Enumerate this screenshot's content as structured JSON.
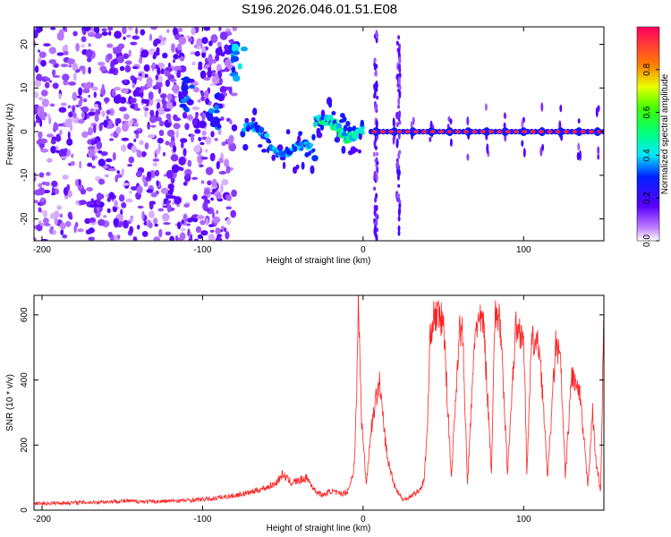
{
  "title": "S196.2026.046.01.51.E08",
  "chart_data": [
    {
      "type": "heatmap",
      "name": "spectrogram",
      "xlabel": "Height of straight line (km)",
      "ylabel": "Frequency (Hz)",
      "xlim": [
        -205,
        150
      ],
      "ylim": [
        -25,
        24
      ],
      "xticks": [
        -200,
        -100,
        0,
        100
      ],
      "yticks": [
        -20,
        -10,
        0,
        10,
        20
      ],
      "colorbar": {
        "label": "Normalized spectral amplitude",
        "range": [
          0,
          1
        ],
        "ticks": [
          0.0,
          0.2,
          0.4,
          0.6,
          0.8
        ]
      },
      "features": [
        {
          "region": "diffuse noise",
          "x_range": [
            -205,
            -80
          ],
          "freq_range": [
            -25,
            24
          ],
          "amplitude": 0.15
        },
        {
          "region": "blob",
          "x": -78,
          "freq": 16,
          "amplitude": 0.35
        },
        {
          "region": "blob",
          "x": -110,
          "freq": 8,
          "amplitude": 0.3
        },
        {
          "region": "blob",
          "x": -92,
          "freq": 5,
          "amplitude": 0.3
        },
        {
          "region": "descending track",
          "x_range": [
            -75,
            -30
          ],
          "freq_range": [
            -8,
            0
          ],
          "amplitude": 0.35
        },
        {
          "region": "track",
          "x_range": [
            -30,
            0
          ],
          "freq_range": [
            -1,
            3
          ],
          "amplitude": 0.45
        },
        {
          "region": "strong line",
          "x_range": [
            5,
            150
          ],
          "freq": 0,
          "amplitude": 0.95
        }
      ]
    },
    {
      "type": "line",
      "name": "snr",
      "xlabel": "Height of straight line (km)",
      "ylabel": "SNR (10 * v/v)",
      "xlim": [
        -205,
        150
      ],
      "ylim": [
        0,
        660
      ],
      "xticks": [
        -200,
        -100,
        0,
        100
      ],
      "yticks": [
        0,
        200,
        400,
        600
      ],
      "series": [
        {
          "name": "SNR",
          "color": "#ff2222",
          "x": [
            -205,
            -190,
            -170,
            -150,
            -130,
            -110,
            -95,
            -80,
            -70,
            -60,
            -55,
            -50,
            -45,
            -40,
            -35,
            -30,
            -25,
            -20,
            -15,
            -10,
            -8,
            -6,
            -5,
            -4,
            -3,
            -1,
            2,
            5,
            10,
            15,
            20,
            25,
            30,
            35,
            38,
            40,
            42,
            45,
            50,
            55,
            60,
            62,
            65,
            70,
            75,
            80,
            82,
            85,
            90,
            95,
            100,
            102,
            105,
            110,
            115,
            120,
            123,
            126,
            130,
            135,
            140,
            143,
            145,
            148,
            150
          ],
          "y": [
            20,
            22,
            24,
            28,
            26,
            30,
            35,
            45,
            55,
            70,
            80,
            110,
            85,
            90,
            100,
            60,
            45,
            60,
            50,
            55,
            80,
            120,
            200,
            350,
            650,
            280,
            80,
            250,
            400,
            160,
            70,
            30,
            45,
            60,
            90,
            250,
            560,
            600,
            580,
            100,
            560,
            540,
            80,
            570,
            580,
            120,
            590,
            600,
            120,
            560,
            540,
            120,
            520,
            500,
            100,
            510,
            460,
            100,
            420,
            350,
            80,
            300,
            150,
            60,
            620
          ]
        }
      ]
    }
  ]
}
